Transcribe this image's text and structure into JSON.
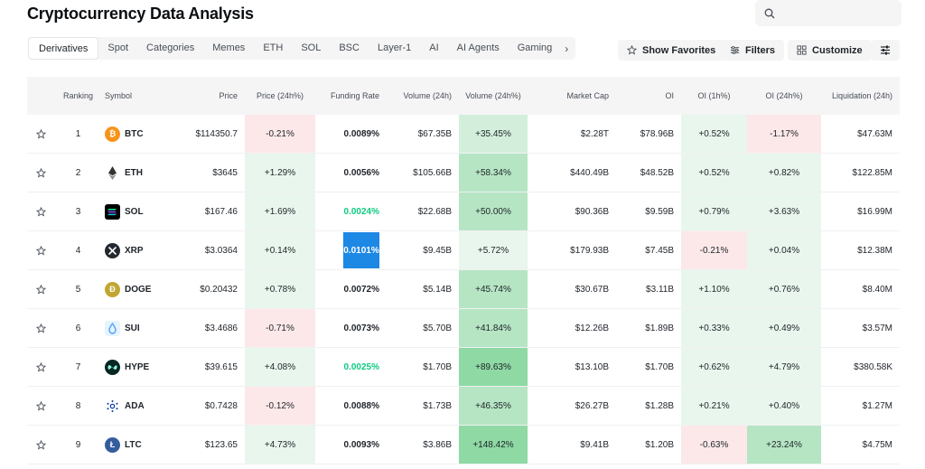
{
  "title": "Cryptocurrency Data Analysis",
  "search": {
    "placeholder": ""
  },
  "tabs": [
    "Derivatives",
    "Spot",
    "Categories",
    "Memes",
    "ETH",
    "SOL",
    "BSC",
    "Layer-1",
    "AI",
    "AI Agents",
    "Gaming"
  ],
  "active_tab": "Derivatives",
  "toolbar": {
    "favorites": "Show Favorites",
    "filters": "Filters",
    "customize": "Customize"
  },
  "columns": {
    "ranking": "Ranking",
    "symbol": "Symbol",
    "price": "Price",
    "price24": "Price (24h%)",
    "funding": "Funding Rate",
    "volume": "Volume (24h)",
    "volume24": "Volume (24h%)",
    "mcap": "Market Cap",
    "oi": "OI",
    "oi1": "OI (1h%)",
    "oi24": "OI (24h%)",
    "liq": "Liquidation (24h)"
  },
  "rows": [
    {
      "rank": "1",
      "symbol": "BTC",
      "icon": "bitcoin-icon",
      "price": "$114350.7",
      "price24": "-0.21%",
      "funding": "0.0089%",
      "volume": "$67.35B",
      "volume24": "+35.45%",
      "mcap": "$2.28T",
      "oi": "$78.96B",
      "oi1": "+0.52%",
      "oi24": "-1.17%",
      "liq": "$47.63M"
    },
    {
      "rank": "2",
      "symbol": "ETH",
      "icon": "ethereum-icon",
      "price": "$3645",
      "price24": "+1.29%",
      "funding": "0.0056%",
      "volume": "$105.66B",
      "volume24": "+58.34%",
      "mcap": "$440.49B",
      "oi": "$48.52B",
      "oi1": "+0.52%",
      "oi24": "+0.82%",
      "liq": "$122.85M"
    },
    {
      "rank": "3",
      "symbol": "SOL",
      "icon": "solana-icon",
      "price": "$167.46",
      "price24": "+1.69%",
      "funding": "0.0024%",
      "volume": "$22.68B",
      "volume24": "+50.00%",
      "mcap": "$90.36B",
      "oi": "$9.59B",
      "oi1": "+0.79%",
      "oi24": "+3.63%",
      "liq": "$16.99M"
    },
    {
      "rank": "4",
      "symbol": "XRP",
      "icon": "xrp-icon",
      "price": "$3.0364",
      "price24": "+0.14%",
      "funding": "0.0101%",
      "volume": "$9.45B",
      "volume24": "+5.72%",
      "mcap": "$179.93B",
      "oi": "$7.45B",
      "oi1": "-0.21%",
      "oi24": "+0.04%",
      "liq": "$12.38M"
    },
    {
      "rank": "5",
      "symbol": "DOGE",
      "icon": "dogecoin-icon",
      "price": "$0.20432",
      "price24": "+0.78%",
      "funding": "0.0072%",
      "volume": "$5.14B",
      "volume24": "+45.74%",
      "mcap": "$30.67B",
      "oi": "$3.11B",
      "oi1": "+1.10%",
      "oi24": "+0.76%",
      "liq": "$8.40M"
    },
    {
      "rank": "6",
      "symbol": "SUI",
      "icon": "sui-icon",
      "price": "$3.4686",
      "price24": "-0.71%",
      "funding": "0.0073%",
      "volume": "$5.70B",
      "volume24": "+41.84%",
      "mcap": "$12.26B",
      "oi": "$1.89B",
      "oi1": "+0.33%",
      "oi24": "+0.49%",
      "liq": "$3.57M"
    },
    {
      "rank": "7",
      "symbol": "HYPE",
      "icon": "hyperliquid-icon",
      "price": "$39.615",
      "price24": "+4.08%",
      "funding": "0.0025%",
      "volume": "$1.70B",
      "volume24": "+89.63%",
      "mcap": "$13.10B",
      "oi": "$1.70B",
      "oi1": "+0.62%",
      "oi24": "+4.79%",
      "liq": "$380.58K"
    },
    {
      "rank": "8",
      "symbol": "ADA",
      "icon": "cardano-icon",
      "price": "$0.7428",
      "price24": "-0.12%",
      "funding": "0.0088%",
      "volume": "$1.73B",
      "volume24": "+46.35%",
      "mcap": "$26.27B",
      "oi": "$1.28B",
      "oi1": "+0.21%",
      "oi24": "+0.40%",
      "liq": "$1.27M"
    },
    {
      "rank": "9",
      "symbol": "LTC",
      "icon": "litecoin-icon",
      "price": "$123.65",
      "price24": "+4.73%",
      "funding": "0.0093%",
      "volume": "$3.86B",
      "volume24": "+148.42%",
      "mcap": "$9.41B",
      "oi": "$1.20B",
      "oi1": "-0.63%",
      "oi24": "+23.24%",
      "liq": "$4.75M"
    }
  ],
  "colors": {
    "positive": "#0ecb81",
    "highlight": "#1e88e5",
    "positive_bg": "#d3efdc",
    "negative_bg": "#fce8e9"
  }
}
